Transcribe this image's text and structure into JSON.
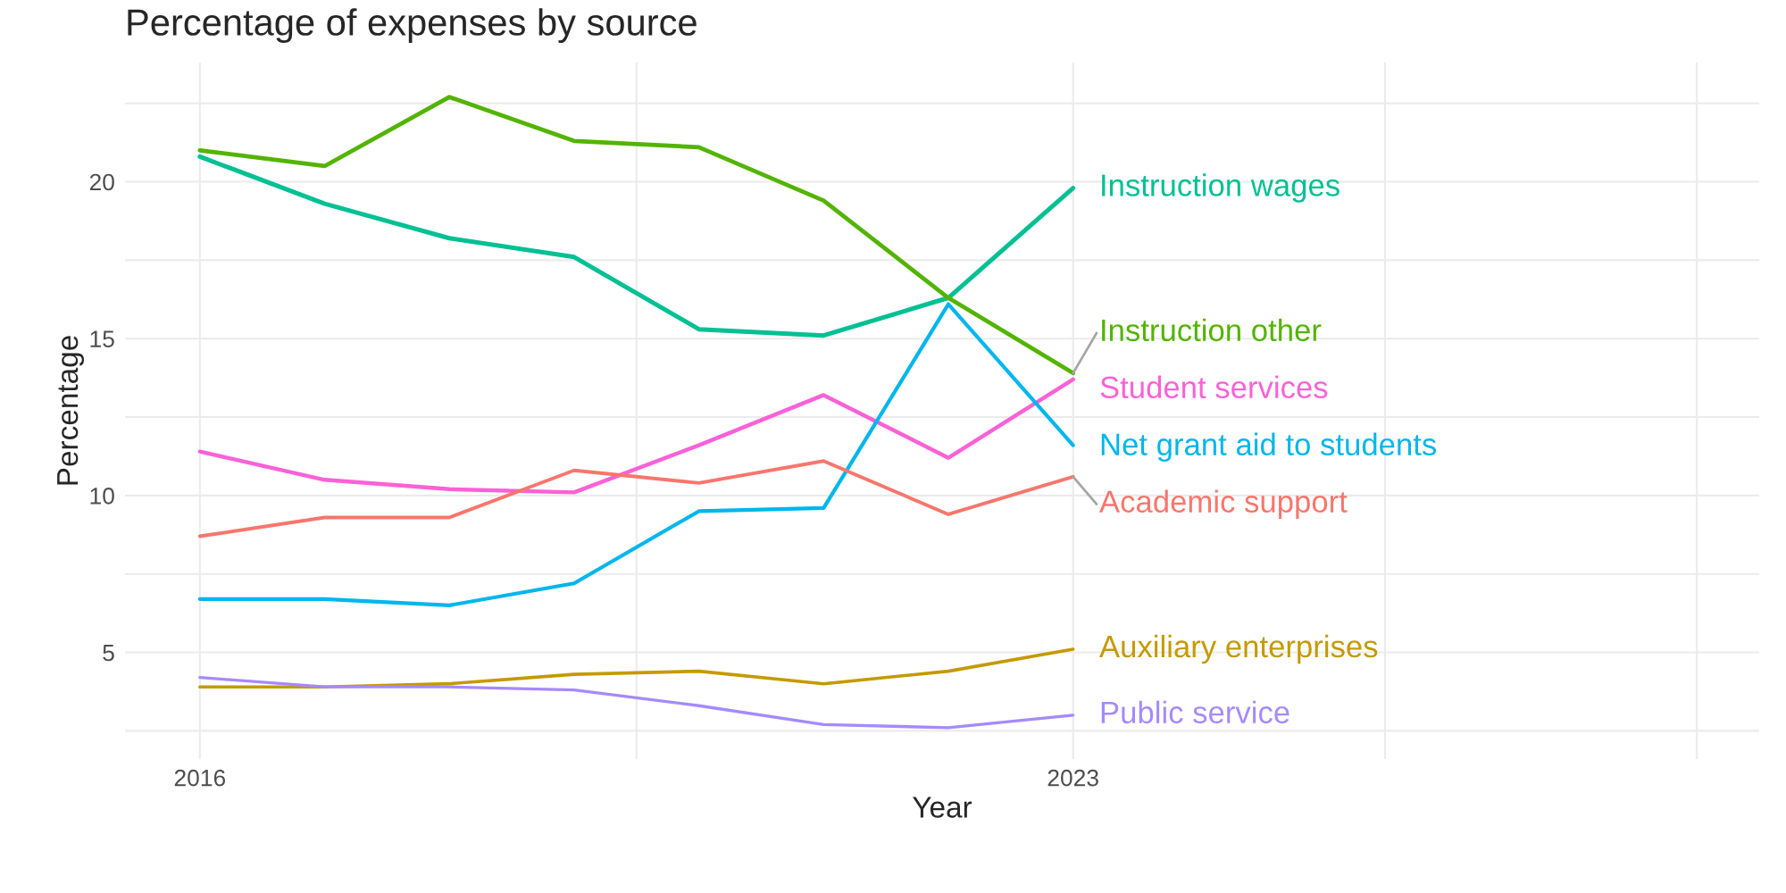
{
  "chart_data": {
    "type": "line",
    "title": "Percentage of expenses by source",
    "xlabel": "Year",
    "ylabel": "Percentage",
    "x": [
      2016,
      2017,
      2018,
      2019,
      2020,
      2021,
      2022,
      2023
    ],
    "series": [
      {
        "name": "Instruction wages",
        "color": "#00c094",
        "values": [
          20.8,
          19.3,
          18.2,
          17.6,
          15.3,
          15.1,
          16.3,
          19.8
        ]
      },
      {
        "name": "Instruction other",
        "color": "#53b400",
        "values": [
          21.0,
          20.5,
          22.7,
          21.3,
          21.1,
          19.4,
          16.3,
          13.9
        ]
      },
      {
        "name": "Student services",
        "color": "#fb61d7",
        "values": [
          11.4,
          10.5,
          10.2,
          10.1,
          11.6,
          13.2,
          11.2,
          13.7
        ]
      },
      {
        "name": "Net grant aid to students",
        "color": "#00b6eb",
        "values": [
          6.7,
          6.7,
          6.5,
          7.2,
          9.5,
          9.6,
          16.1,
          11.6
        ]
      },
      {
        "name": "Academic support",
        "color": "#f8766d",
        "values": [
          8.7,
          9.3,
          9.3,
          10.8,
          10.4,
          11.1,
          9.4,
          10.6
        ]
      },
      {
        "name": "Auxiliary enterprises",
        "color": "#c49a00",
        "values": [
          3.9,
          3.9,
          4.0,
          4.3,
          4.4,
          4.0,
          4.4,
          5.1
        ]
      },
      {
        "name": "Public service",
        "color": "#a58aff",
        "values": [
          4.2,
          3.9,
          3.9,
          3.8,
          3.3,
          2.7,
          2.6,
          3.0
        ]
      }
    ],
    "xlim": [
      2015.4,
      2028.5
    ],
    "xticks": [
      2016,
      {
        "value": 2019.5,
        "label": null
      },
      2023,
      {
        "value": 2025.5,
        "label": null
      },
      {
        "value": 2028,
        "label": null
      }
    ],
    "ylim": [
      1.6,
      23.8
    ],
    "yticks": [
      {
        "value": 2.5,
        "label": null
      },
      5,
      {
        "value": 7.5,
        "label": null
      },
      10,
      {
        "value": 12.5,
        "label": null
      },
      15,
      {
        "value": 17.5,
        "label": null
      },
      20,
      {
        "value": 22.5,
        "label": null
      }
    ],
    "grid": true,
    "legend": false,
    "line_style": "solid",
    "marker": "none"
  }
}
